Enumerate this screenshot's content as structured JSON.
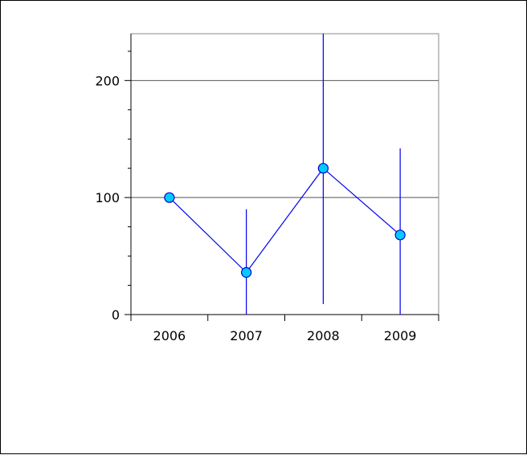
{
  "chart_data": {
    "type": "line",
    "categories": [
      "2006",
      "2007",
      "2008",
      "2009"
    ],
    "series": [
      {
        "values": [
          100,
          36,
          125,
          68
        ],
        "error_low": [
          null,
          0,
          9,
          0
        ],
        "error_high": [
          null,
          90,
          240,
          142
        ]
      }
    ],
    "ylim": [
      0,
      240
    ],
    "yticks": [
      "0",
      "100",
      "200"
    ],
    "ytick_values": [
      0,
      100,
      200
    ],
    "grid": true,
    "title": "",
    "xlabel": "",
    "ylabel": "",
    "colors": {
      "line": "#0000ee",
      "marker_fill": "#00ccff",
      "marker_stroke": "#0000cc",
      "grid": "#555555",
      "plot_border": "#888888",
      "axis": "#000000"
    }
  }
}
